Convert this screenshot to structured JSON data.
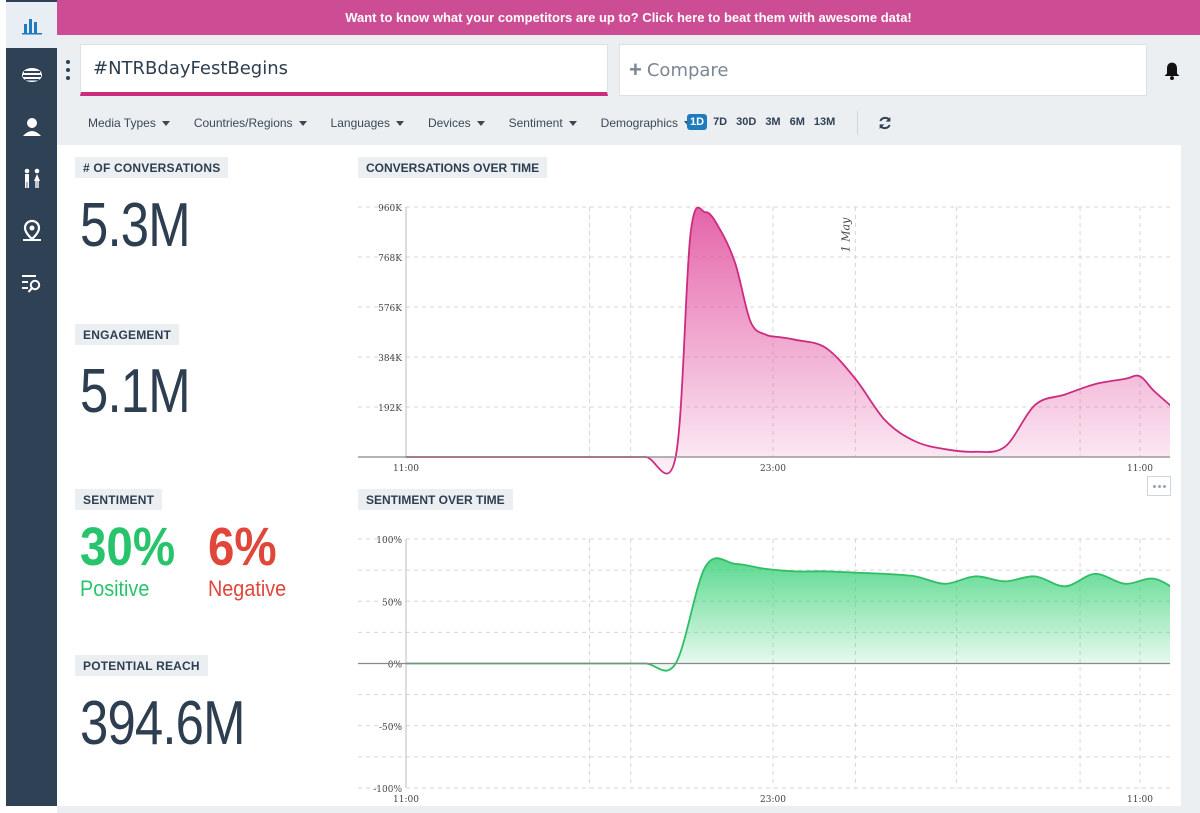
{
  "promo": {
    "text": "Want to know what your competitors are up to? Click here to beat them with awesome data!"
  },
  "nav": [
    {
      "icon": "bar-chart-icon",
      "active": true
    },
    {
      "icon": "news-stack-icon"
    },
    {
      "icon": "user-icon"
    },
    {
      "icon": "people-icon"
    },
    {
      "icon": "location-pin-icon"
    },
    {
      "icon": "list-search-icon"
    }
  ],
  "search": {
    "query": "#NTRBdayFestBegins",
    "compare_label": "Compare"
  },
  "filters": [
    "Media Types",
    "Countries/Regions",
    "Languages",
    "Devices",
    "Sentiment",
    "Demographics"
  ],
  "ranges": {
    "items": [
      "1D",
      "7D",
      "30D",
      "3M",
      "6M",
      "13M"
    ],
    "active": "1D"
  },
  "metrics": {
    "conversations": {
      "label": "# OF CONVERSATIONS",
      "value": "5.3M"
    },
    "engagement": {
      "label": "ENGAGEMENT",
      "value": "5.1M"
    },
    "sentiment": {
      "label": "SENTIMENT",
      "positive_pct": "30%",
      "positive_label": "Positive",
      "negative_pct": "6%",
      "negative_label": "Negative"
    },
    "reach": {
      "label": "POTENTIAL REACH",
      "value": "394.6M"
    }
  },
  "colors": {
    "accent": "#cc2c80",
    "positive": "#27c46b",
    "negative": "#e0463a",
    "brand": "#2f4155"
  },
  "chart_data": [
    {
      "type": "area",
      "title": "CONVERSATIONS OVER TIME",
      "x_ticks": [
        "11:00",
        "23:00",
        "11:00"
      ],
      "y_ticks": [
        "192K",
        "384K",
        "576K",
        "768K",
        "960K"
      ],
      "ylim": [
        0,
        960000
      ],
      "annotation": "1 May",
      "hours": [
        0,
        1,
        2,
        3,
        4,
        5,
        6,
        7,
        8,
        9,
        9.5,
        10,
        10.5,
        11,
        11.5,
        12,
        12.5,
        13,
        14,
        15,
        16,
        17,
        18,
        19,
        20,
        21,
        22,
        23,
        24,
        24.5,
        25,
        26
      ],
      "values": [
        0,
        0,
        0,
        0,
        0,
        0,
        0,
        0,
        0,
        0,
        860000,
        940000,
        870000,
        740000,
        520000,
        470000,
        460000,
        450000,
        420000,
        300000,
        140000,
        60000,
        30000,
        20000,
        40000,
        200000,
        240000,
        280000,
        300000,
        310000,
        250000,
        150000
      ]
    },
    {
      "type": "area",
      "title": "SENTIMENT OVER TIME",
      "x_ticks": [
        "11:00",
        "23:00",
        "11:00"
      ],
      "y_ticks": [
        "100%",
        "50%",
        "0%",
        "-50%",
        "-100%"
      ],
      "ylim": [
        -100,
        100
      ],
      "hours": [
        0,
        1,
        2,
        3,
        4,
        5,
        6,
        7,
        8,
        9,
        10,
        11,
        12,
        13,
        14,
        15,
        16,
        17,
        18,
        19,
        20,
        21,
        22,
        23,
        24,
        25,
        26
      ],
      "values": [
        0,
        0,
        0,
        0,
        0,
        0,
        0,
        0,
        0,
        0,
        78,
        80,
        76,
        74,
        74,
        73,
        72,
        70,
        64,
        70,
        66,
        70,
        62,
        72,
        64,
        68,
        54
      ]
    }
  ]
}
